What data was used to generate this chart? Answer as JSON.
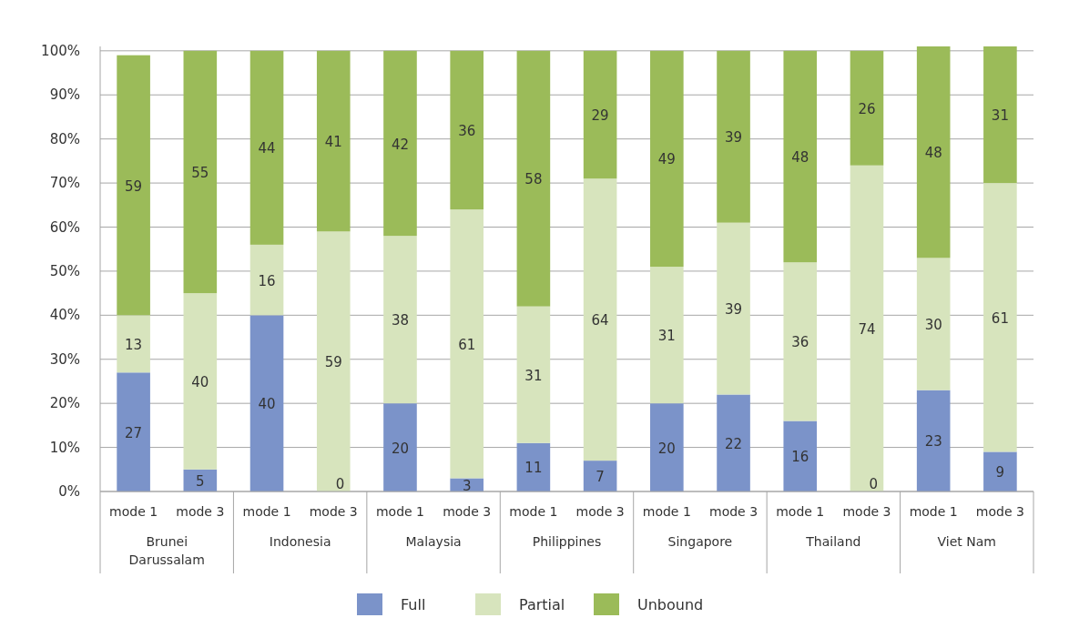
{
  "chart_data": {
    "type": "bar",
    "stacked": true,
    "categories": [
      "mode 1",
      "mode 3",
      "mode 1",
      "mode 3",
      "mode 1",
      "mode 3",
      "mode 1",
      "mode 3",
      "mode 1",
      "mode 3",
      "mode 1",
      "mode 3",
      "mode 1",
      "mode 3"
    ],
    "series": [
      {
        "name": "Full",
        "color": "#7b93c9",
        "values": [
          27,
          5,
          40,
          0,
          20,
          3,
          11,
          7,
          20,
          22,
          16,
          0,
          23,
          9
        ],
        "value_labels": [
          "27",
          "5",
          "40",
          null,
          "20",
          "3",
          "11",
          "7",
          "20",
          "22",
          "16",
          null,
          "23",
          "9"
        ]
      },
      {
        "name": "Partial",
        "color": "#d7e4bd",
        "values": [
          13,
          40,
          16,
          59,
          38,
          61,
          31,
          64,
          31,
          39,
          36,
          74,
          30,
          61
        ],
        "value_labels": [
          "13",
          "40",
          "16",
          "59",
          "38",
          "61",
          "31",
          "64",
          "31",
          "39",
          "36",
          "74",
          "30",
          "61"
        ]
      },
      {
        "name": "Unbound",
        "color": "#9bbb59",
        "values": [
          59,
          55,
          44,
          41,
          42,
          36,
          58,
          29,
          49,
          39,
          48,
          26,
          48,
          31
        ],
        "value_labels": [
          "59",
          "55",
          "44",
          "41",
          "42",
          "36",
          "58",
          "29",
          "49",
          "39",
          "48",
          "26",
          "48",
          "31"
        ]
      }
    ],
    "annotations": [
      "Brunei Darussalam",
      "Indonesia",
      "Malaysia",
      "Philippines",
      "Singapore",
      "Thailand",
      "Viet Nam",
      "0",
      "0"
    ],
    "ylim": [
      0,
      101
    ],
    "yticks": [
      {
        "value": 0,
        "label": "0%"
      },
      {
        "value": 10,
        "label": "10%"
      },
      {
        "value": 20,
        "label": "20%"
      },
      {
        "value": 30,
        "label": "30%"
      },
      {
        "value": 40,
        "label": "40%"
      },
      {
        "value": 50,
        "label": "50%"
      },
      {
        "value": 60,
        "label": "60%"
      },
      {
        "value": 70,
        "label": "70%"
      },
      {
        "value": 80,
        "label": "80%"
      },
      {
        "value": 90,
        "label": "90%"
      },
      {
        "value": 100,
        "label": "100%"
      }
    ],
    "grid": "y",
    "legend": "bottom"
  }
}
